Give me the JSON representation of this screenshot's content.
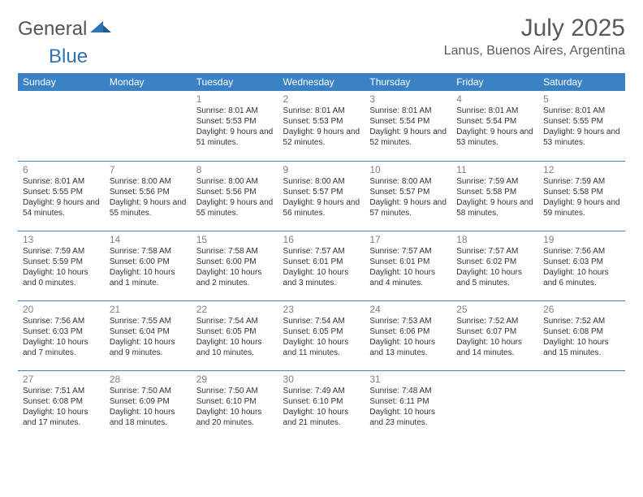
{
  "brand": {
    "text_general": "General",
    "text_blue": "Blue"
  },
  "title": "July 2025",
  "location": "Lanus, Buenos Aires, Argentina",
  "colors": {
    "header_bg": "#3a82c4",
    "header_text": "#ffffff",
    "border": "#3a82c4",
    "daynum": "#808080",
    "body_text": "#333333",
    "title_text": "#5a5a5a",
    "logo_blue": "#2e74b5"
  },
  "weekdays": [
    "Sunday",
    "Monday",
    "Tuesday",
    "Wednesday",
    "Thursday",
    "Friday",
    "Saturday"
  ],
  "grid": [
    [
      null,
      null,
      {
        "n": "1",
        "sr": "8:01 AM",
        "ss": "5:53 PM",
        "dl": "9 hours and 51 minutes."
      },
      {
        "n": "2",
        "sr": "8:01 AM",
        "ss": "5:53 PM",
        "dl": "9 hours and 52 minutes."
      },
      {
        "n": "3",
        "sr": "8:01 AM",
        "ss": "5:54 PM",
        "dl": "9 hours and 52 minutes."
      },
      {
        "n": "4",
        "sr": "8:01 AM",
        "ss": "5:54 PM",
        "dl": "9 hours and 53 minutes."
      },
      {
        "n": "5",
        "sr": "8:01 AM",
        "ss": "5:55 PM",
        "dl": "9 hours and 53 minutes."
      }
    ],
    [
      {
        "n": "6",
        "sr": "8:01 AM",
        "ss": "5:55 PM",
        "dl": "9 hours and 54 minutes."
      },
      {
        "n": "7",
        "sr": "8:00 AM",
        "ss": "5:56 PM",
        "dl": "9 hours and 55 minutes."
      },
      {
        "n": "8",
        "sr": "8:00 AM",
        "ss": "5:56 PM",
        "dl": "9 hours and 55 minutes."
      },
      {
        "n": "9",
        "sr": "8:00 AM",
        "ss": "5:57 PM",
        "dl": "9 hours and 56 minutes."
      },
      {
        "n": "10",
        "sr": "8:00 AM",
        "ss": "5:57 PM",
        "dl": "9 hours and 57 minutes."
      },
      {
        "n": "11",
        "sr": "7:59 AM",
        "ss": "5:58 PM",
        "dl": "9 hours and 58 minutes."
      },
      {
        "n": "12",
        "sr": "7:59 AM",
        "ss": "5:58 PM",
        "dl": "9 hours and 59 minutes."
      }
    ],
    [
      {
        "n": "13",
        "sr": "7:59 AM",
        "ss": "5:59 PM",
        "dl": "10 hours and 0 minutes."
      },
      {
        "n": "14",
        "sr": "7:58 AM",
        "ss": "6:00 PM",
        "dl": "10 hours and 1 minute."
      },
      {
        "n": "15",
        "sr": "7:58 AM",
        "ss": "6:00 PM",
        "dl": "10 hours and 2 minutes."
      },
      {
        "n": "16",
        "sr": "7:57 AM",
        "ss": "6:01 PM",
        "dl": "10 hours and 3 minutes."
      },
      {
        "n": "17",
        "sr": "7:57 AM",
        "ss": "6:01 PM",
        "dl": "10 hours and 4 minutes."
      },
      {
        "n": "18",
        "sr": "7:57 AM",
        "ss": "6:02 PM",
        "dl": "10 hours and 5 minutes."
      },
      {
        "n": "19",
        "sr": "7:56 AM",
        "ss": "6:03 PM",
        "dl": "10 hours and 6 minutes."
      }
    ],
    [
      {
        "n": "20",
        "sr": "7:56 AM",
        "ss": "6:03 PM",
        "dl": "10 hours and 7 minutes."
      },
      {
        "n": "21",
        "sr": "7:55 AM",
        "ss": "6:04 PM",
        "dl": "10 hours and 9 minutes."
      },
      {
        "n": "22",
        "sr": "7:54 AM",
        "ss": "6:05 PM",
        "dl": "10 hours and 10 minutes."
      },
      {
        "n": "23",
        "sr": "7:54 AM",
        "ss": "6:05 PM",
        "dl": "10 hours and 11 minutes."
      },
      {
        "n": "24",
        "sr": "7:53 AM",
        "ss": "6:06 PM",
        "dl": "10 hours and 13 minutes."
      },
      {
        "n": "25",
        "sr": "7:52 AM",
        "ss": "6:07 PM",
        "dl": "10 hours and 14 minutes."
      },
      {
        "n": "26",
        "sr": "7:52 AM",
        "ss": "6:08 PM",
        "dl": "10 hours and 15 minutes."
      }
    ],
    [
      {
        "n": "27",
        "sr": "7:51 AM",
        "ss": "6:08 PM",
        "dl": "10 hours and 17 minutes."
      },
      {
        "n": "28",
        "sr": "7:50 AM",
        "ss": "6:09 PM",
        "dl": "10 hours and 18 minutes."
      },
      {
        "n": "29",
        "sr": "7:50 AM",
        "ss": "6:10 PM",
        "dl": "10 hours and 20 minutes."
      },
      {
        "n": "30",
        "sr": "7:49 AM",
        "ss": "6:10 PM",
        "dl": "10 hours and 21 minutes."
      },
      {
        "n": "31",
        "sr": "7:48 AM",
        "ss": "6:11 PM",
        "dl": "10 hours and 23 minutes."
      },
      null,
      null
    ]
  ],
  "labels": {
    "sunrise": "Sunrise:",
    "sunset": "Sunset:",
    "daylight": "Daylight:"
  }
}
